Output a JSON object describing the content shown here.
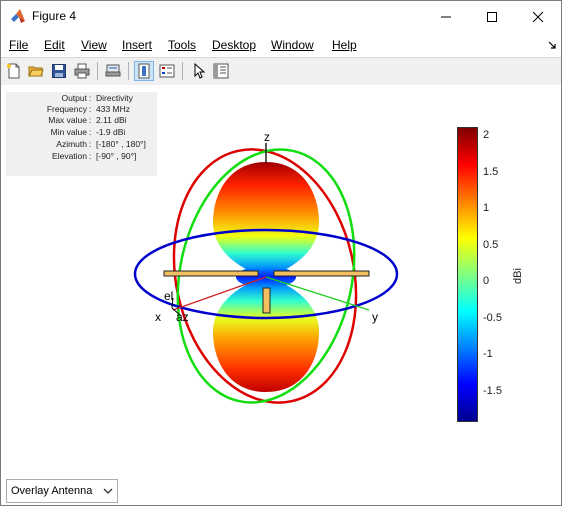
{
  "window": {
    "title": "Figure 4",
    "app_icon": "matlab-icon",
    "controls": [
      "minimize-icon",
      "maximize-icon",
      "close-icon"
    ]
  },
  "menu": {
    "items": [
      {
        "label": "File"
      },
      {
        "label": "Edit"
      },
      {
        "label": "View"
      },
      {
        "label": "Insert"
      },
      {
        "label": "Tools"
      },
      {
        "label": "Desktop"
      },
      {
        "label": "Window"
      },
      {
        "label": "Help"
      }
    ],
    "dock_icon": "dock-arrow-icon"
  },
  "toolbar": {
    "buttons": [
      "new-figure-icon",
      "open-icon",
      "save-icon",
      "print-icon",
      "print-preview-icon",
      "colorbar-toggle-icon",
      "legend-toggle-icon",
      "pointer-icon",
      "property-inspector-icon"
    ]
  },
  "info": {
    "rows": [
      {
        "label": "Output",
        "value": "Directivity"
      },
      {
        "label": "Frequency",
        "value": "433 MHz"
      },
      {
        "label": "Max value",
        "value": "2.11 dBi"
      },
      {
        "label": "Min value",
        "value": "-1.9 dBi"
      },
      {
        "label": "Azimuth",
        "value": "[-180° , 180°]"
      },
      {
        "label": "Elevation",
        "value": "[-90° , 90°]"
      }
    ]
  },
  "plot": {
    "axis_labels": {
      "z": "z",
      "x": "x",
      "y": "y",
      "el": "el",
      "az": "az"
    },
    "ring_colors": {
      "azimuth": "#0000cc",
      "xz": "#dd0000",
      "yz": "#11dd11"
    }
  },
  "colorbar": {
    "ticks": [
      "2",
      "1.5",
      "1",
      "0.5",
      "0",
      "-0.5",
      "-1",
      "-1.5"
    ],
    "tick_values": [
      2,
      1.5,
      1,
      0.5,
      0,
      -0.5,
      -1,
      -1.5
    ],
    "range": [
      -1.9,
      2.11
    ],
    "label": "dBi"
  },
  "dropdown": {
    "selected": "Overlay Antenna"
  }
}
